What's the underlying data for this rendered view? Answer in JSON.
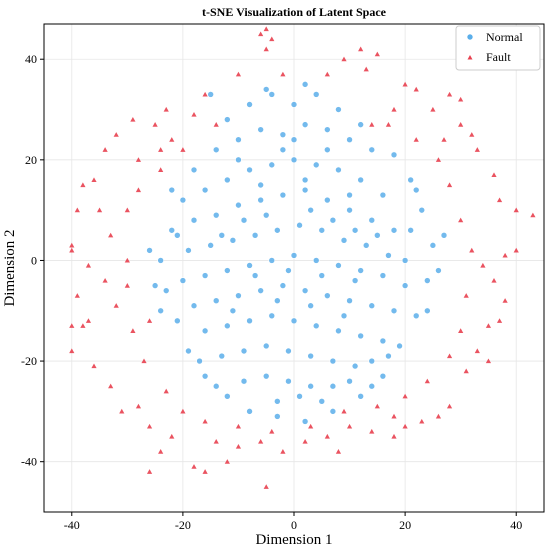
{
  "chart_data": {
    "type": "scatter",
    "title": "t-SNE Visualization of Latent Space",
    "xlabel": "Dimension 1",
    "ylabel": "Dimension 2",
    "xlim": [
      -45,
      45
    ],
    "ylim": [
      -50,
      47
    ],
    "xticks": [
      -40,
      -20,
      0,
      20,
      40
    ],
    "yticks": [
      -40,
      -20,
      0,
      20,
      40
    ],
    "grid": true,
    "legend_position": "top-right",
    "series": [
      {
        "name": "Normal",
        "marker": "circle",
        "color": "#5aaeea",
        "points": [
          [
            -12,
            28
          ],
          [
            -8,
            31
          ],
          [
            -4,
            33
          ],
          [
            0,
            31
          ],
          [
            4,
            33
          ],
          [
            8,
            30
          ],
          [
            12,
            27
          ],
          [
            -15,
            33
          ],
          [
            -5,
            34
          ],
          [
            2,
            35
          ],
          [
            -10,
            24
          ],
          [
            -6,
            26
          ],
          [
            -2,
            25
          ],
          [
            2,
            27
          ],
          [
            6,
            26
          ],
          [
            10,
            24
          ],
          [
            14,
            22
          ],
          [
            -14,
            22
          ],
          [
            -18,
            18
          ],
          [
            -20,
            12
          ],
          [
            -22,
            6
          ],
          [
            -24,
            0
          ],
          [
            -23,
            -6
          ],
          [
            -21,
            -12
          ],
          [
            -19,
            -18
          ],
          [
            -16,
            -23
          ],
          [
            -12,
            -27
          ],
          [
            -8,
            -30
          ],
          [
            -3,
            -31
          ],
          [
            2,
            -32
          ],
          [
            7,
            -30
          ],
          [
            12,
            -27
          ],
          [
            16,
            -23
          ],
          [
            19,
            -17
          ],
          [
            22,
            -11
          ],
          [
            24,
            -4
          ],
          [
            25,
            3
          ],
          [
            23,
            10
          ],
          [
            21,
            16
          ],
          [
            18,
            21
          ],
          [
            -26,
            2
          ],
          [
            -25,
            -5
          ],
          [
            26,
            -2
          ],
          [
            27,
            5
          ],
          [
            -16,
            14
          ],
          [
            -12,
            16
          ],
          [
            -8,
            18
          ],
          [
            -4,
            19
          ],
          [
            0,
            20
          ],
          [
            4,
            19
          ],
          [
            8,
            18
          ],
          [
            12,
            16
          ],
          [
            16,
            13
          ],
          [
            -18,
            8
          ],
          [
            -14,
            9
          ],
          [
            -10,
            11
          ],
          [
            -6,
            12
          ],
          [
            -2,
            13
          ],
          [
            2,
            14
          ],
          [
            6,
            12
          ],
          [
            10,
            10
          ],
          [
            14,
            8
          ],
          [
            18,
            6
          ],
          [
            -19,
            2
          ],
          [
            -15,
            3
          ],
          [
            -11,
            4
          ],
          [
            -7,
            5
          ],
          [
            -3,
            6
          ],
          [
            1,
            7
          ],
          [
            5,
            6
          ],
          [
            9,
            4
          ],
          [
            13,
            3
          ],
          [
            17,
            1
          ],
          [
            20,
            0
          ],
          [
            -20,
            -4
          ],
          [
            -16,
            -3
          ],
          [
            -12,
            -2
          ],
          [
            -8,
            -1
          ],
          [
            -4,
            0
          ],
          [
            0,
            1
          ],
          [
            4,
            0
          ],
          [
            8,
            -1
          ],
          [
            12,
            -2
          ],
          [
            16,
            -3
          ],
          [
            20,
            -5
          ],
          [
            -18,
            -9
          ],
          [
            -14,
            -8
          ],
          [
            -10,
            -7
          ],
          [
            -6,
            -6
          ],
          [
            -2,
            -5
          ],
          [
            2,
            -6
          ],
          [
            6,
            -7
          ],
          [
            10,
            -8
          ],
          [
            14,
            -9
          ],
          [
            18,
            -10
          ],
          [
            -16,
            -14
          ],
          [
            -12,
            -13
          ],
          [
            -8,
            -12
          ],
          [
            -4,
            -11
          ],
          [
            0,
            -12
          ],
          [
            4,
            -13
          ],
          [
            8,
            -14
          ],
          [
            12,
            -15
          ],
          [
            16,
            -16
          ],
          [
            -13,
            -19
          ],
          [
            -9,
            -18
          ],
          [
            -5,
            -17
          ],
          [
            -1,
            -18
          ],
          [
            3,
            -19
          ],
          [
            7,
            -20
          ],
          [
            11,
            -21
          ],
          [
            14,
            -20
          ],
          [
            -9,
            -24
          ],
          [
            -5,
            -23
          ],
          [
            -1,
            -24
          ],
          [
            3,
            -25
          ],
          [
            7,
            -25
          ],
          [
            10,
            -24
          ],
          [
            -3,
            -28
          ],
          [
            1,
            -27
          ],
          [
            5,
            -28
          ],
          [
            -13,
            5
          ],
          [
            -9,
            8
          ],
          [
            -5,
            9
          ],
          [
            3,
            10
          ],
          [
            7,
            8
          ],
          [
            11,
            6
          ],
          [
            15,
            5
          ],
          [
            -7,
            -3
          ],
          [
            -1,
            -2
          ],
          [
            5,
            -3
          ],
          [
            11,
            -4
          ],
          [
            -11,
            -10
          ],
          [
            -3,
            -8
          ],
          [
            3,
            -9
          ],
          [
            9,
            -11
          ],
          [
            -6,
            15
          ],
          [
            2,
            16
          ],
          [
            10,
            13
          ],
          [
            -10,
            20
          ],
          [
            6,
            22
          ],
          [
            -2,
            22
          ],
          [
            -17,
            -20
          ],
          [
            17,
            -19
          ],
          [
            -21,
            5
          ],
          [
            21,
            6
          ],
          [
            -14,
            -25
          ],
          [
            14,
            -25
          ],
          [
            0,
            24
          ],
          [
            -24,
            -10
          ],
          [
            24,
            -10
          ],
          [
            -22,
            14
          ],
          [
            22,
            14
          ]
        ]
      },
      {
        "name": "Fault",
        "marker": "triangle",
        "color": "#e8404f",
        "points": [
          [
            -5,
            46
          ],
          [
            -4,
            44
          ],
          [
            -6,
            45
          ],
          [
            -5,
            42
          ],
          [
            12,
            42
          ],
          [
            15,
            41
          ],
          [
            9,
            40
          ],
          [
            13,
            38
          ],
          [
            -10,
            37
          ],
          [
            -2,
            37
          ],
          [
            6,
            37
          ],
          [
            20,
            35
          ],
          [
            22,
            34
          ],
          [
            28,
            33
          ],
          [
            30,
            32
          ],
          [
            -16,
            33
          ],
          [
            -18,
            29
          ],
          [
            -23,
            30
          ],
          [
            -25,
            27
          ],
          [
            -29,
            28
          ],
          [
            -32,
            25
          ],
          [
            -34,
            22
          ],
          [
            -36,
            16
          ],
          [
            -38,
            15
          ],
          [
            -39,
            10
          ],
          [
            -40,
            3
          ],
          [
            -40,
            2
          ],
          [
            -37,
            -1
          ],
          [
            -39,
            -7
          ],
          [
            -40,
            -13
          ],
          [
            -38,
            -13
          ],
          [
            -37,
            -12
          ],
          [
            -40,
            -18
          ],
          [
            -36,
            -21
          ],
          [
            -33,
            -25
          ],
          [
            -31,
            -30
          ],
          [
            -28,
            -29
          ],
          [
            -26,
            -33
          ],
          [
            -24,
            -38
          ],
          [
            -26,
            -42
          ],
          [
            -22,
            -35
          ],
          [
            -18,
            -41
          ],
          [
            -16,
            -42
          ],
          [
            -12,
            -40
          ],
          [
            -10,
            -37
          ],
          [
            -6,
            -36
          ],
          [
            -2,
            -38
          ],
          [
            -5,
            -45
          ],
          [
            2,
            -36
          ],
          [
            6,
            -35
          ],
          [
            10,
            -33
          ],
          [
            14,
            -34
          ],
          [
            18,
            -35
          ],
          [
            20,
            -33
          ],
          [
            23,
            -32
          ],
          [
            26,
            -31
          ],
          [
            28,
            -29
          ],
          [
            31,
            -22
          ],
          [
            33,
            -18
          ],
          [
            35,
            -13
          ],
          [
            37,
            -12
          ],
          [
            38,
            -8
          ],
          [
            36,
            -4
          ],
          [
            34,
            -1
          ],
          [
            38,
            1
          ],
          [
            40,
            2
          ],
          [
            43,
            9
          ],
          [
            40,
            10
          ],
          [
            37,
            12
          ],
          [
            36,
            17
          ],
          [
            33,
            22
          ],
          [
            32,
            25
          ],
          [
            30,
            27
          ],
          [
            27,
            24
          ],
          [
            25,
            30
          ],
          [
            18,
            30
          ],
          [
            14,
            27
          ],
          [
            -14,
            27
          ],
          [
            -20,
            22
          ],
          [
            -24,
            18
          ],
          [
            -28,
            14
          ],
          [
            -30,
            10
          ],
          [
            -33,
            5
          ],
          [
            -34,
            -4
          ],
          [
            -32,
            -9
          ],
          [
            -29,
            -14
          ],
          [
            -27,
            -20
          ],
          [
            -23,
            -26
          ],
          [
            -20,
            -30
          ],
          [
            -16,
            -32
          ],
          [
            -10,
            -33
          ],
          [
            -4,
            -34
          ],
          [
            3,
            -33
          ],
          [
            9,
            -30
          ],
          [
            15,
            -29
          ],
          [
            20,
            -27
          ],
          [
            24,
            -24
          ],
          [
            28,
            -19
          ],
          [
            30,
            -14
          ],
          [
            31,
            -7
          ],
          [
            32,
            2
          ],
          [
            30,
            8
          ],
          [
            28,
            15
          ],
          [
            26,
            20
          ],
          [
            22,
            24
          ],
          [
            17,
            27
          ],
          [
            -22,
            24
          ],
          [
            -28,
            20
          ],
          [
            -30,
            0
          ],
          [
            -30,
            -5
          ],
          [
            -26,
            -12
          ],
          [
            -24,
            22
          ],
          [
            18,
            -31
          ],
          [
            8,
            -38
          ],
          [
            -14,
            -36
          ],
          [
            35,
            -20
          ],
          [
            -35,
            10
          ]
        ]
      }
    ]
  }
}
